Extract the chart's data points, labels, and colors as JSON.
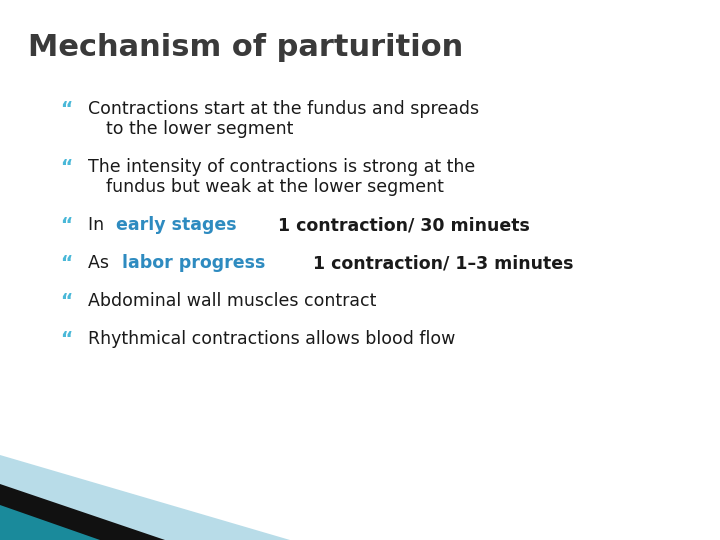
{
  "title": "Mechanism of parturition",
  "title_color": "#3a3a3a",
  "title_fontsize": 22,
  "background_color": "#ffffff",
  "bullet_char": "“",
  "bullet_color": "#4ab8d8",
  "text_color": "#1a1a1a",
  "highlight_color": "#2e8bc0",
  "bullets": [
    {
      "lines": [
        {
          "text": "Contractions start at the fundus and spreads",
          "bold": false,
          "parts": null
        },
        {
          "text": "to the lower segment",
          "bold": false,
          "parts": null,
          "indent": true
        }
      ]
    },
    {
      "lines": [
        {
          "text": "The intensity of contractions is strong at the",
          "bold": false,
          "parts": null
        },
        {
          "text": "fundus but weak at the lower segment",
          "bold": false,
          "parts": null,
          "indent": true
        }
      ]
    },
    {
      "lines": [
        {
          "parts": [
            {
              "text": "In ",
              "color": "#1a1a1a",
              "bold": false
            },
            {
              "text": "early stages",
              "color": "#2e8bc0",
              "bold": true
            },
            {
              "text": " 1 contraction/ 30 minuets",
              "color": "#1a1a1a",
              "bold": true
            }
          ]
        }
      ]
    },
    {
      "lines": [
        {
          "parts": [
            {
              "text": "As ",
              "color": "#1a1a1a",
              "bold": false
            },
            {
              "text": "labor progress",
              "color": "#2e8bc0",
              "bold": true
            },
            {
              "text": " 1 contraction/ 1–3 minutes",
              "color": "#1a1a1a",
              "bold": true
            }
          ]
        }
      ]
    },
    {
      "lines": [
        {
          "text": "Abdominal wall muscles contract",
          "bold": false,
          "parts": null
        }
      ]
    },
    {
      "lines": [
        {
          "text": "Rhythmical contractions allows blood flow",
          "bold": false,
          "parts": null
        }
      ]
    }
  ],
  "decoration": {
    "teal_color": "#1a8a9b",
    "black_color": "#111111",
    "light_blue_color": "#b8dce8"
  }
}
